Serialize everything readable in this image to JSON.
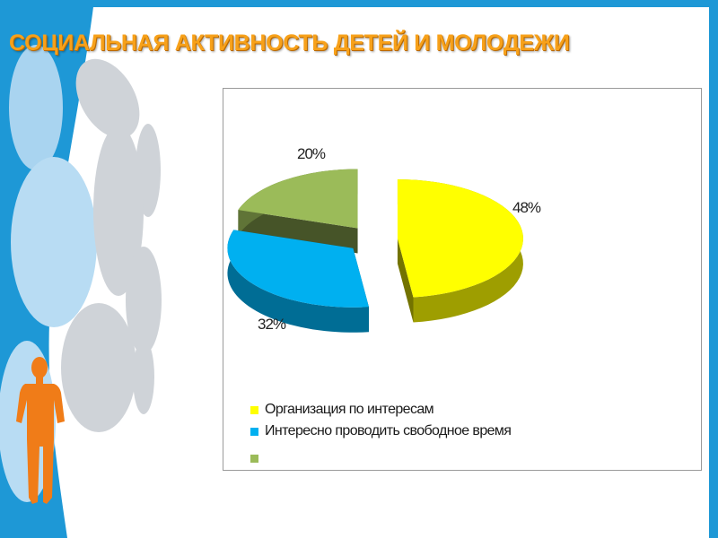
{
  "slide": {
    "title": "СОЦИАЛЬНАЯ АКТИВНОСТЬ ДЕТЕЙ И МОЛОДЕЖИ"
  },
  "colors": {
    "title": "#f7a11a",
    "accent_blue": "#1e98d6",
    "figure_orange": "#f07c18"
  },
  "chart_data": {
    "type": "pie",
    "style": "3d-exploded",
    "categories": [
      "Организация по интересам",
      "Интересно проводить свободное время",
      ""
    ],
    "values": [
      48,
      32,
      20
    ],
    "data_labels": [
      "48%",
      "32%",
      "20%"
    ],
    "colors": [
      "#ffff00",
      "#00b0f0",
      "#9bbb59"
    ],
    "legend_position": "bottom-left"
  }
}
